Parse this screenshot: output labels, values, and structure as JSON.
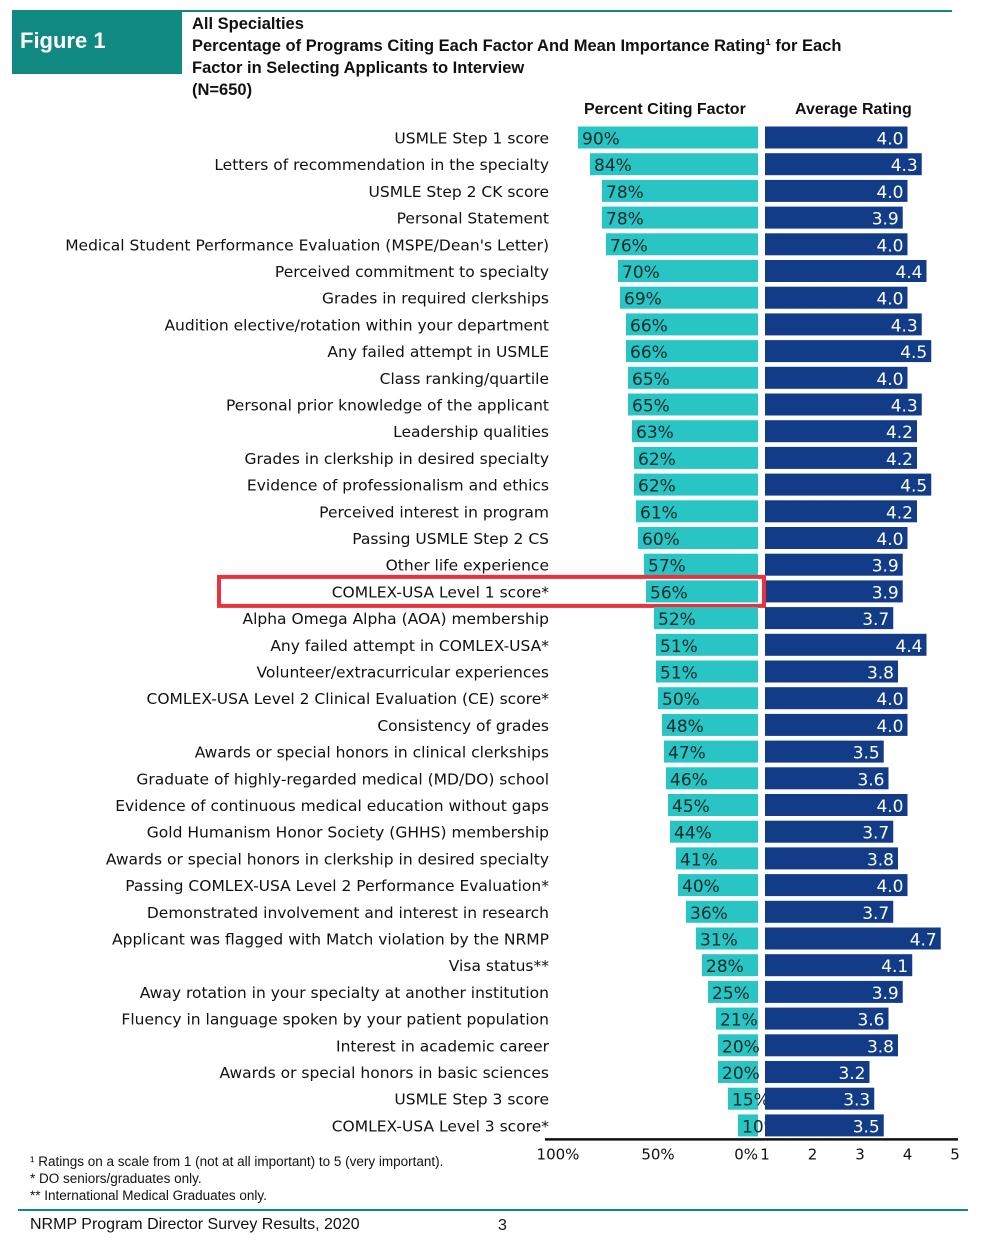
{
  "figure_label": "Figure 1",
  "title_lines": [
    "All Specialties",
    "Percentage of Programs Citing Each Factor And Mean Importance Rating¹ for Each",
    "Factor in Selecting Applicants to Interview",
    "(N=650)"
  ],
  "colors": {
    "teal": "#29c4c4",
    "navy": "#123c87",
    "brand": "#108a80",
    "highlight": "#e8333f"
  },
  "chart_data": {
    "type": "bar",
    "title": "Percentage of Programs Citing Each Factor And Mean Importance Rating for Each Factor in Selecting Applicants to Interview",
    "highlighted_category": "COMLEX-USA Level 1 score*",
    "categories": [
      "USMLE Step 1 score",
      "Letters of recommendation in the specialty",
      "USMLE Step 2 CK score",
      "Personal Statement",
      "Medical Student Performance Evaluation (MSPE/Dean's Letter)",
      "Perceived commitment to specialty",
      "Grades in required clerkships",
      "Audition elective/rotation within your department",
      "Any failed attempt in USMLE",
      "Class ranking/quartile",
      "Personal prior knowledge of the applicant",
      "Leadership qualities",
      "Grades in clerkship in desired specialty",
      "Evidence of professionalism and ethics",
      "Perceived interest in program",
      "Passing USMLE Step 2 CS",
      "Other life experience",
      "COMLEX-USA Level 1 score*",
      "Alpha Omega Alpha (AOA) membership",
      "Any failed attempt in COMLEX-USA*",
      "Volunteer/extracurricular experiences",
      "COMLEX-USA Level 2 Clinical Evaluation (CE) score*",
      "Consistency of grades",
      "Awards or special honors in clinical clerkships",
      "Graduate of highly-regarded medical (MD/DO) school",
      "Evidence of continuous medical education without gaps",
      "Gold Humanism Honor Society (GHHS) membership",
      "Awards or special honors in clerkship in desired specialty",
      "Passing COMLEX-USA Level 2 Performance Evaluation*",
      "Demonstrated involvement and interest in research",
      "Applicant was flagged with Match violation by the NRMP",
      "Visa status**",
      "Away rotation in your specialty at another institution",
      "Fluency in language spoken by your patient population",
      "Interest in academic career",
      "Awards or special honors in basic sciences",
      "USMLE Step 3 score",
      "COMLEX-USA Level 3 score*"
    ],
    "series": [
      {
        "name": "Percent Citing Factor",
        "values": [
          90,
          84,
          78,
          78,
          76,
          70,
          69,
          66,
          66,
          65,
          65,
          63,
          62,
          62,
          61,
          60,
          57,
          56,
          52,
          51,
          51,
          50,
          48,
          47,
          46,
          45,
          44,
          41,
          40,
          36,
          31,
          28,
          25,
          21,
          20,
          20,
          15,
          10
        ],
        "labels": [
          "90%",
          "84%",
          "78%",
          "78%",
          "76%",
          "70%",
          "69%",
          "66%",
          "66%",
          "65%",
          "65%",
          "63%",
          "62%",
          "62%",
          "61%",
          "60%",
          "57%",
          "56%",
          "52%",
          "51%",
          "51%",
          "50%",
          "48%",
          "47%",
          "46%",
          "45%",
          "44%",
          "41%",
          "40%",
          "36%",
          "31%",
          "28%",
          "25%",
          "21%",
          "20%",
          "20%",
          "15%",
          "10%"
        ],
        "axis_ticks": [
          "100%",
          "50%",
          "0%"
        ],
        "xlim": [
          0,
          100
        ],
        "direction": "reversed"
      },
      {
        "name": "Average Rating",
        "values": [
          4.0,
          4.3,
          4.0,
          3.9,
          4.0,
          4.4,
          4.0,
          4.3,
          4.5,
          4.0,
          4.3,
          4.2,
          4.2,
          4.5,
          4.2,
          4.0,
          3.9,
          3.9,
          3.7,
          4.4,
          3.8,
          4.0,
          4.0,
          3.5,
          3.6,
          4.0,
          3.7,
          3.8,
          4.0,
          3.7,
          4.7,
          4.1,
          3.9,
          3.6,
          3.8,
          3.2,
          3.3,
          3.5
        ],
        "labels": [
          "4.0",
          "4.3",
          "4.0",
          "3.9",
          "4.0",
          "4.4",
          "4.0",
          "4.3",
          "4.5",
          "4.0",
          "4.3",
          "4.2",
          "4.2",
          "4.5",
          "4.2",
          "4.0",
          "3.9",
          "3.9",
          "3.7",
          "4.4",
          "3.8",
          "4.0",
          "4.0",
          "3.5",
          "3.6",
          "4.0",
          "3.7",
          "3.8",
          "4.0",
          "3.7",
          "4.7",
          "4.1",
          "3.9",
          "3.6",
          "3.8",
          "3.2",
          "3.3",
          "3.5"
        ],
        "axis_ticks": [
          "1",
          "2",
          "3",
          "4",
          "5"
        ],
        "xlim": [
          1,
          5
        ]
      }
    ]
  },
  "footnotes": [
    "¹ Ratings on a scale from 1 (not at all important) to 5 (very important).",
    "* DO seniors/graduates only.",
    "** International Medical Graduates only."
  ],
  "source": "NRMP Program Director Survey Results, 2020",
  "page_number": "3"
}
